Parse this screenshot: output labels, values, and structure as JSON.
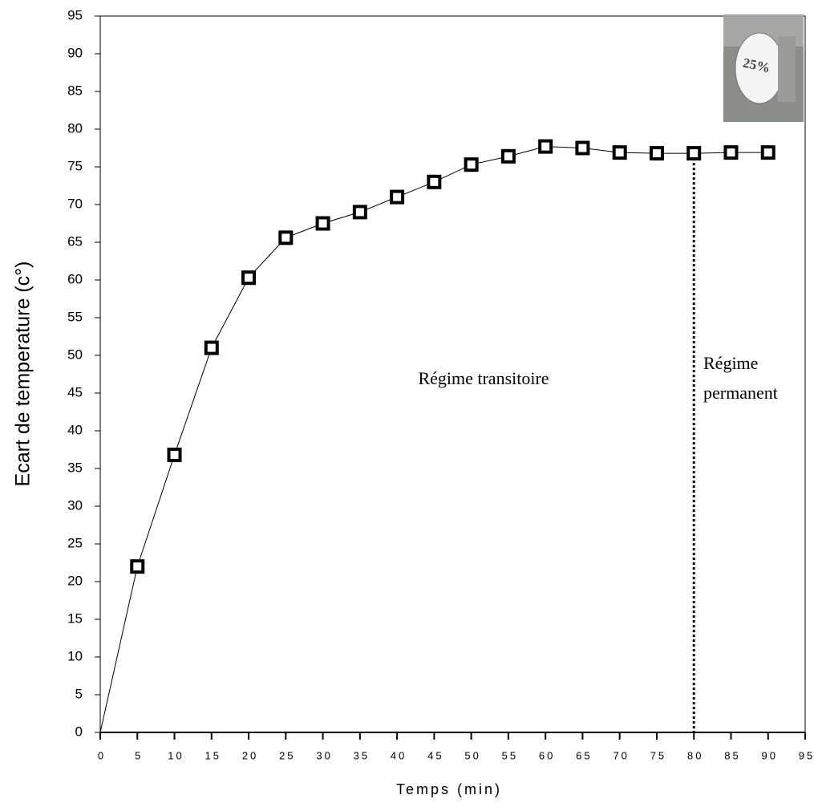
{
  "chart_data": {
    "type": "line",
    "x_label": "Temps (min)",
    "y_label": "Ecart de temperature (c°)",
    "x": [
      0,
      5,
      10,
      15,
      20,
      25,
      30,
      35,
      40,
      45,
      50,
      55,
      60,
      65,
      70,
      75,
      80,
      85,
      90
    ],
    "series": [
      {
        "color": "#000000",
        "values": [
          0,
          22,
          36.8,
          51,
          60.3,
          65.6,
          67.5,
          69,
          71,
          73,
          75.3,
          76.4,
          77.7,
          77.5,
          76.9,
          76.8,
          76.8,
          76.9,
          76.9
        ]
      }
    ],
    "xlim": [
      0,
      95
    ],
    "ylim": [
      0,
      95
    ],
    "xticks": [
      0,
      5,
      10,
      15,
      20,
      25,
      30,
      35,
      40,
      45,
      50,
      55,
      60,
      65,
      70,
      75,
      80,
      85,
      90,
      95
    ],
    "yticks": [
      0,
      5,
      10,
      15,
      20,
      25,
      30,
      35,
      40,
      45,
      50,
      55,
      60,
      65,
      70,
      75,
      80,
      85,
      90,
      95
    ],
    "vline": {
      "x": 80
    },
    "annotations": [
      "Régime transitoire",
      "Régime",
      "permanent"
    ],
    "inset_label": "25%"
  }
}
